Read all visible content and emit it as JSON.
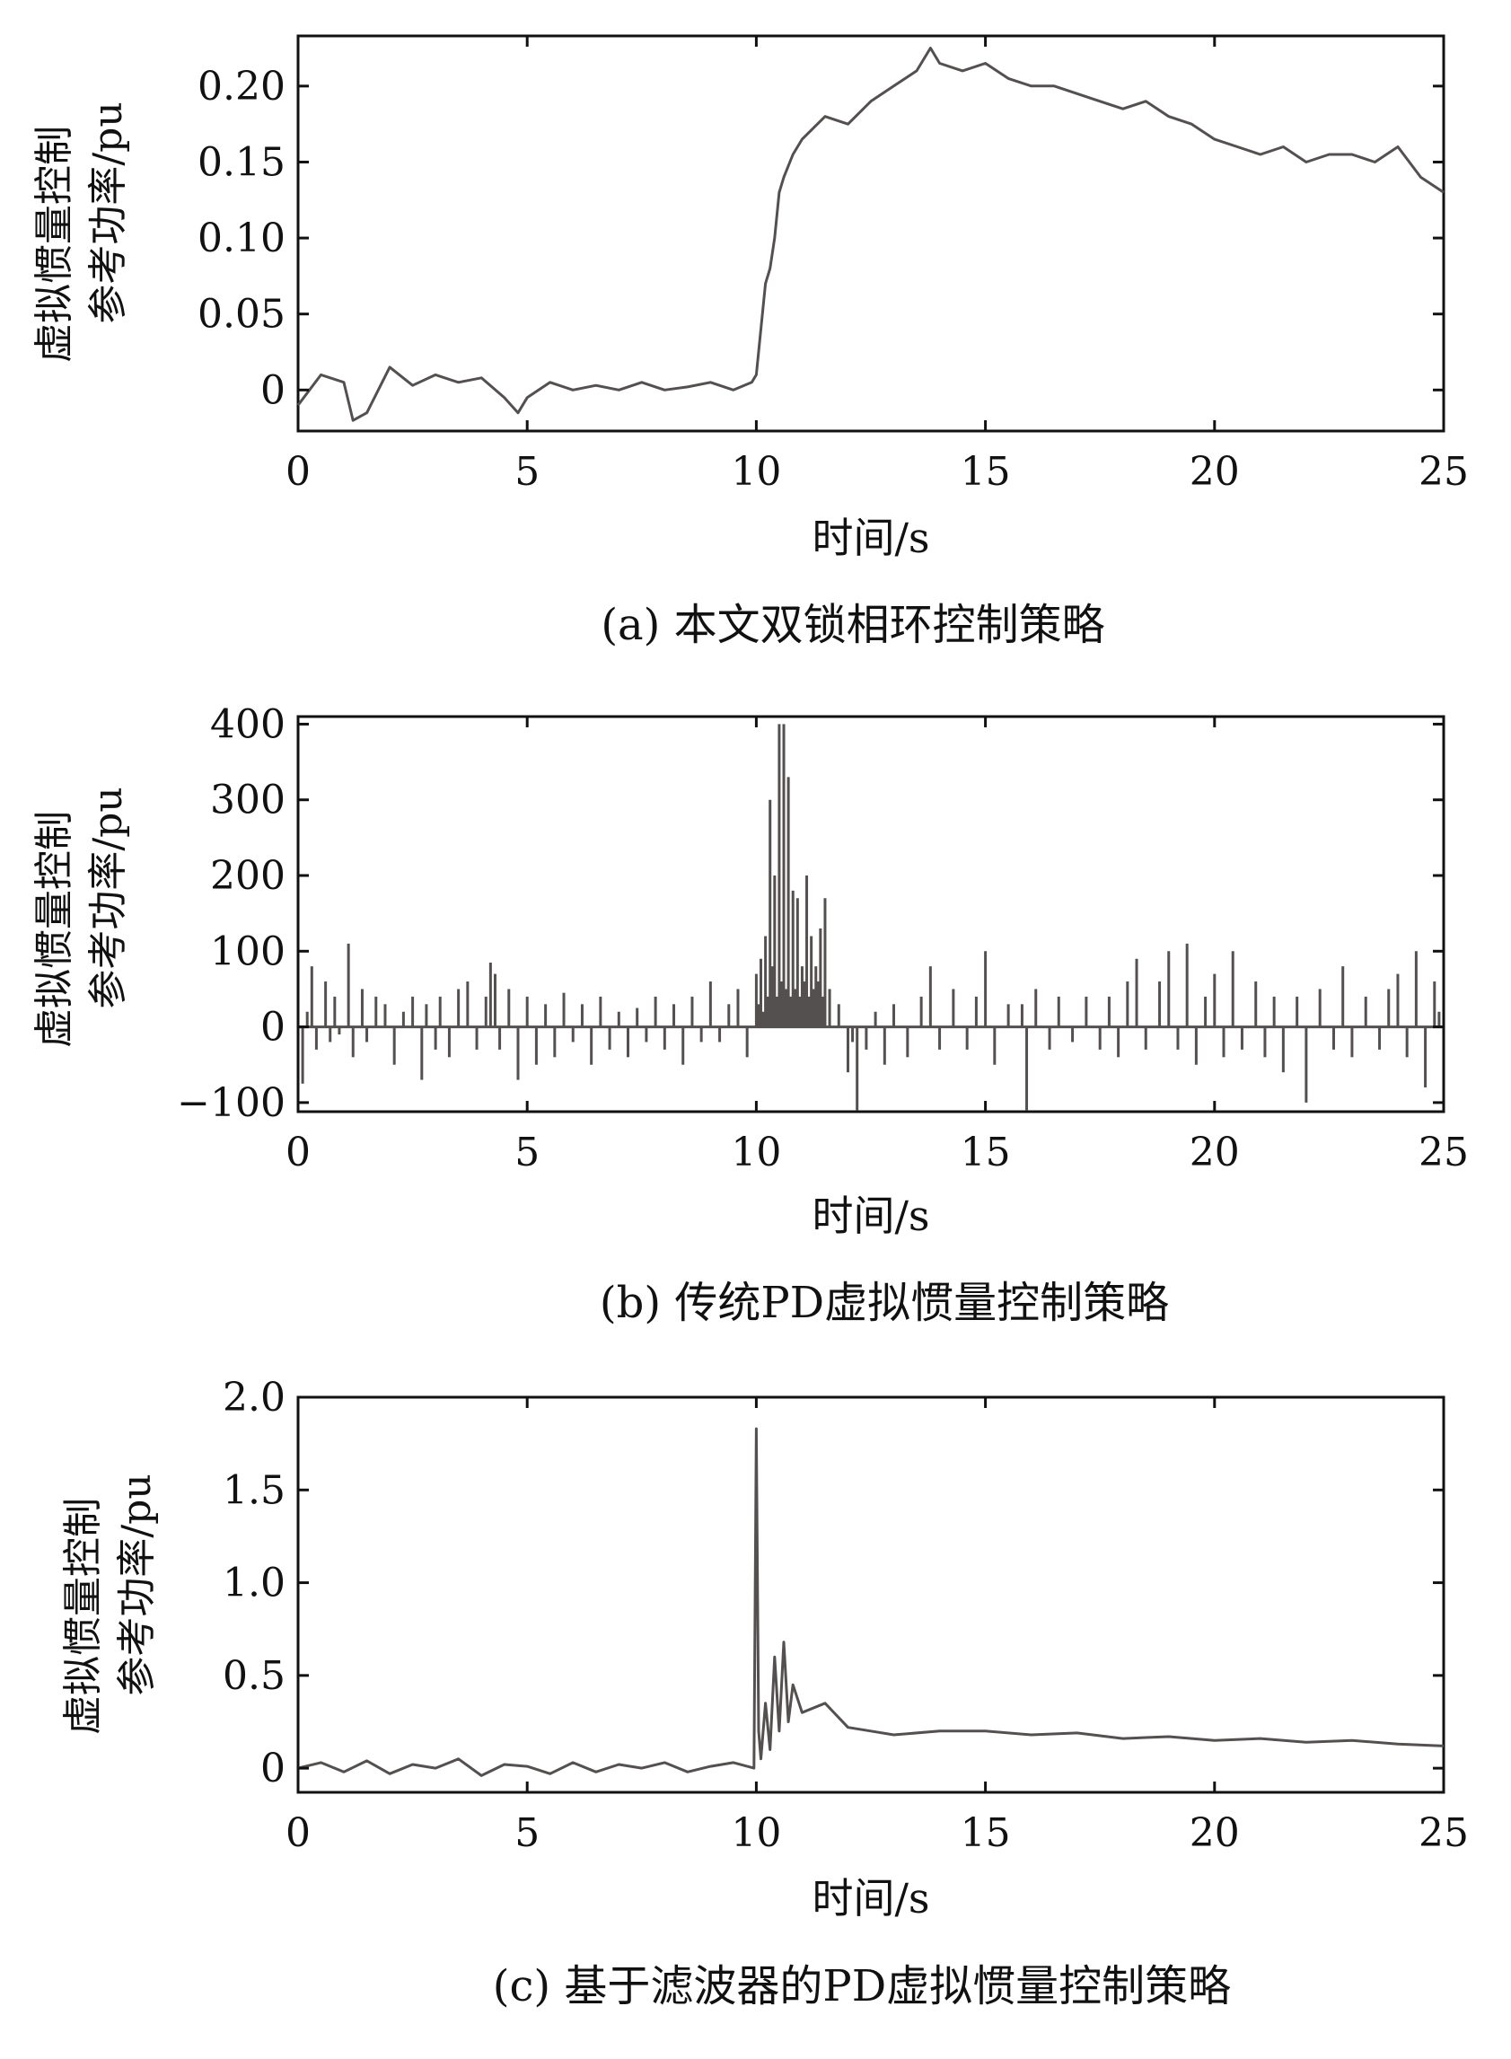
{
  "figure": {
    "panels": [
      {
        "caption": "(a) 本文双锁相环控制策略",
        "xlabel": "时间/s",
        "ylabel_line1": "虚拟惯量控制",
        "ylabel_line2": "参考功率/pu"
      },
      {
        "caption": "(b) 传统PD虚拟惯量控制策略",
        "xlabel": "时间/s",
        "ylabel_line1": "虚拟惯量控制",
        "ylabel_line2": "参考功率/pu"
      },
      {
        "caption": "(c) 基于滤波器的PD虚拟惯量控制策略",
        "xlabel": "时间/s",
        "ylabel_line1": "虚拟惯量控制",
        "ylabel_line2": "参考功率/pu"
      }
    ]
  },
  "chart_data": [
    {
      "type": "line",
      "title": "(a) 本文双锁相环控制策略",
      "xlabel": "时间/s",
      "ylabel": "虚拟惯量控制参考功率/pu",
      "xlim": [
        0,
        25
      ],
      "ylim": [
        -0.027,
        0.233
      ],
      "xticks": [
        0,
        5,
        10,
        15,
        20,
        25
      ],
      "xtick_labels": [
        "0",
        "5",
        "10",
        "15",
        "20",
        "25"
      ],
      "yticks": [
        0,
        0.05,
        0.1,
        0.15,
        0.2
      ],
      "ytick_labels": [
        "0",
        "0.05",
        "0.10",
        "0.15",
        "0.20"
      ],
      "line_color": "#555050",
      "grid": false,
      "series": [
        {
          "x": [
            0,
            0.5,
            1,
            1.2,
            1.5,
            2,
            2.5,
            3,
            3.5,
            4,
            4.5,
            4.8,
            5,
            5.5,
            6,
            6.5,
            7,
            7.5,
            8,
            8.5,
            9,
            9.5,
            9.9,
            10,
            10.1,
            10.2,
            10.3,
            10.4,
            10.5,
            10.6,
            10.8,
            11,
            11.5,
            12,
            12.5,
            13,
            13.5,
            13.8,
            14,
            14.5,
            15,
            15.5,
            16,
            16.5,
            17,
            17.5,
            18,
            18.5,
            19,
            19.5,
            20,
            20.5,
            21,
            21.5,
            22,
            22.5,
            23,
            23.5,
            24,
            24.5,
            25
          ],
          "y": [
            -0.01,
            0.01,
            0.005,
            -0.02,
            -0.015,
            0.015,
            0.003,
            0.01,
            0.005,
            0.008,
            -0.005,
            -0.015,
            -0.005,
            0.005,
            0.0,
            0.003,
            0.0,
            0.005,
            0.0,
            0.002,
            0.005,
            0.0,
            0.005,
            0.01,
            0.04,
            0.07,
            0.08,
            0.1,
            0.13,
            0.14,
            0.155,
            0.165,
            0.18,
            0.175,
            0.19,
            0.2,
            0.21,
            0.225,
            0.215,
            0.21,
            0.215,
            0.205,
            0.2,
            0.2,
            0.195,
            0.19,
            0.185,
            0.19,
            0.18,
            0.175,
            0.165,
            0.16,
            0.155,
            0.16,
            0.15,
            0.155,
            0.155,
            0.15,
            0.16,
            0.14,
            0.13
          ]
        }
      ]
    },
    {
      "type": "line",
      "title": "(b) 传统PD虚拟惯量控制策略",
      "xlabel": "时间/s",
      "ylabel": "虚拟惯量控制参考功率/pu",
      "xlim": [
        0,
        25
      ],
      "ylim": [
        -112,
        410
      ],
      "xticks": [
        0,
        5,
        10,
        15,
        20,
        25
      ],
      "xtick_labels": [
        "0",
        "5",
        "10",
        "15",
        "20",
        "25"
      ],
      "yticks": [
        -100,
        0,
        100,
        200,
        300,
        400
      ],
      "ytick_labels": [
        "−100",
        "0",
        "100",
        "200",
        "300",
        "400"
      ],
      "line_color": "#555050",
      "grid": false,
      "series": [
        {
          "x": [
            0.1,
            0.2,
            0.3,
            0.4,
            0.6,
            0.7,
            0.8,
            0.9,
            1.1,
            1.2,
            1.4,
            1.5,
            1.7,
            1.9,
            2.1,
            2.3,
            2.5,
            2.7,
            2.8,
            3.0,
            3.1,
            3.3,
            3.5,
            3.7,
            3.9,
            4.1,
            4.2,
            4.3,
            4.4,
            4.6,
            4.8,
            5.0,
            5.2,
            5.4,
            5.6,
            5.8,
            6.0,
            6.2,
            6.4,
            6.6,
            6.8,
            7.0,
            7.2,
            7.4,
            7.6,
            7.8,
            8.0,
            8.2,
            8.4,
            8.6,
            8.8,
            9.0,
            9.2,
            9.4,
            9.6,
            9.8,
            10.0,
            10.05,
            10.1,
            10.15,
            10.2,
            10.25,
            10.3,
            10.35,
            10.4,
            10.45,
            10.5,
            10.55,
            10.6,
            10.65,
            10.7,
            10.75,
            10.8,
            10.85,
            10.9,
            10.95,
            11.0,
            11.05,
            11.1,
            11.15,
            11.2,
            11.25,
            11.3,
            11.35,
            11.4,
            11.45,
            11.5,
            11.6,
            11.8,
            12.0,
            12.1,
            12.2,
            12.4,
            12.6,
            12.8,
            13.0,
            13.3,
            13.6,
            13.8,
            14.0,
            14.3,
            14.6,
            14.8,
            15.0,
            15.2,
            15.5,
            15.8,
            15.9,
            16.1,
            16.4,
            16.6,
            16.9,
            17.2,
            17.5,
            17.7,
            17.9,
            18.1,
            18.3,
            18.5,
            18.8,
            19.0,
            19.2,
            19.4,
            19.6,
            19.8,
            20.0,
            20.2,
            20.4,
            20.6,
            20.9,
            21.1,
            21.3,
            21.5,
            21.8,
            22.0,
            22.3,
            22.6,
            22.8,
            23.0,
            23.3,
            23.6,
            23.8,
            24.0,
            24.2,
            24.4,
            24.6,
            24.8,
            24.9
          ],
          "y": [
            -75,
            20,
            80,
            -30,
            60,
            -20,
            40,
            -10,
            110,
            -40,
            50,
            -20,
            40,
            30,
            -50,
            20,
            40,
            -70,
            30,
            -30,
            40,
            -40,
            50,
            60,
            -30,
            40,
            85,
            70,
            -30,
            50,
            -70,
            40,
            -50,
            30,
            -40,
            45,
            -20,
            30,
            -50,
            40,
            -30,
            20,
            -40,
            25,
            -20,
            40,
            -30,
            30,
            -50,
            40,
            -20,
            60,
            -20,
            30,
            50,
            -40,
            70,
            30,
            90,
            20,
            120,
            40,
            300,
            80,
            200,
            40,
            400,
            60,
            400,
            50,
            330,
            40,
            180,
            50,
            170,
            40,
            80,
            60,
            200,
            40,
            120,
            50,
            80,
            60,
            130,
            40,
            170,
            50,
            30,
            -60,
            -20,
            -110,
            -30,
            20,
            -50,
            30,
            -40,
            40,
            80,
            -30,
            50,
            -30,
            40,
            100,
            -50,
            30,
            30,
            -110,
            50,
            -30,
            40,
            -20,
            40,
            -30,
            40,
            -40,
            60,
            90,
            -30,
            60,
            100,
            -30,
            110,
            -50,
            40,
            70,
            -40,
            100,
            -30,
            60,
            -40,
            40,
            -60,
            40,
            -100,
            50,
            -30,
            80,
            -40,
            40,
            -30,
            50,
            70,
            -40,
            100,
            -80,
            60,
            20
          ]
        }
      ]
    },
    {
      "type": "line",
      "title": "(c) 基于滤波器的PD虚拟惯量控制策略",
      "xlabel": "时间/s",
      "ylabel": "虚拟惯量控制参考功率/pu",
      "xlim": [
        0,
        25
      ],
      "ylim": [
        -0.13,
        2.0
      ],
      "xticks": [
        0,
        5,
        10,
        15,
        20,
        25
      ],
      "xtick_labels": [
        "0",
        "5",
        "10",
        "15",
        "20",
        "25"
      ],
      "yticks": [
        0,
        0.5,
        1.0,
        1.5,
        2.0
      ],
      "ytick_labels": [
        "0",
        "0.5",
        "1.0",
        "1.5",
        "2.0"
      ],
      "line_color": "#555050",
      "grid": false,
      "series": [
        {
          "x": [
            0,
            0.5,
            1,
            1.5,
            2,
            2.5,
            3,
            3.5,
            4,
            4.5,
            5,
            5.5,
            6,
            6.5,
            7,
            7.5,
            8,
            8.5,
            9,
            9.5,
            9.95,
            10.0,
            10.05,
            10.1,
            10.2,
            10.3,
            10.4,
            10.5,
            10.6,
            10.7,
            10.8,
            11.0,
            11.5,
            12.0,
            12.5,
            13,
            14,
            15,
            16,
            17,
            18,
            19,
            20,
            21,
            22,
            23,
            24,
            25
          ],
          "y": [
            0.0,
            0.03,
            -0.02,
            0.04,
            -0.03,
            0.02,
            0.0,
            0.05,
            -0.04,
            0.02,
            0.01,
            -0.03,
            0.03,
            -0.02,
            0.02,
            0.0,
            0.03,
            -0.02,
            0.01,
            0.03,
            0.0,
            1.83,
            0.2,
            0.05,
            0.35,
            0.1,
            0.6,
            0.2,
            0.68,
            0.25,
            0.45,
            0.3,
            0.35,
            0.22,
            0.2,
            0.18,
            0.2,
            0.2,
            0.18,
            0.19,
            0.16,
            0.17,
            0.15,
            0.16,
            0.14,
            0.15,
            0.13,
            0.12
          ]
        }
      ]
    }
  ]
}
